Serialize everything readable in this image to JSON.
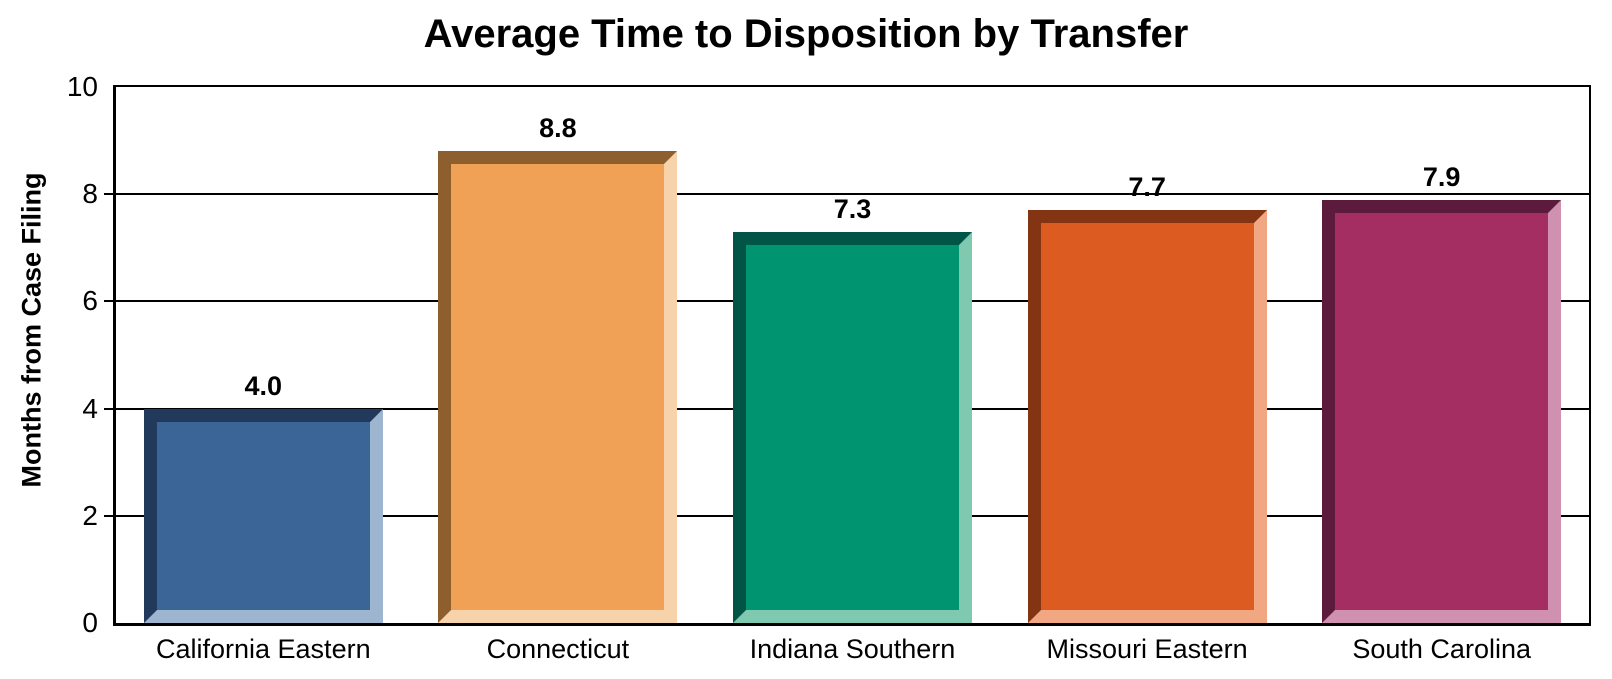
{
  "chart_data": {
    "type": "bar",
    "title": "Average Time to Disposition by Transfer",
    "xlabel": "",
    "ylabel": "Months from Case Filing",
    "ylim": [
      0,
      10
    ],
    "yticks": [
      0,
      2,
      4,
      6,
      8,
      10
    ],
    "grid": true,
    "legend": "none",
    "categories": [
      "California Eastern",
      "Connecticut",
      "Indiana Southern",
      "Missouri Eastern",
      "South Carolina"
    ],
    "values": [
      4.0,
      8.8,
      7.3,
      7.7,
      7.9
    ],
    "value_labels": [
      "4.0",
      "8.8",
      "7.3",
      "7.7",
      "7.9"
    ],
    "bar_styles": [
      {
        "fill": "#3B6597",
        "dark_edge": "#21395A",
        "light_edge": "#9EB5D0"
      },
      {
        "fill": "#F0A156",
        "dark_edge": "#8D5F2F",
        "light_edge": "#F6D3AA"
      },
      {
        "fill": "#009471",
        "dark_edge": "#005546",
        "light_edge": "#7FC9B0"
      },
      {
        "fill": "#DC5B20",
        "dark_edge": "#823413",
        "light_edge": "#F2A783"
      },
      {
        "fill": "#A42E62",
        "dark_edge": "#5C1B3C",
        "light_edge": "#D091B0"
      }
    ]
  },
  "colors": {
    "background": "#FFFFFF",
    "axis": "#000000",
    "text": "#000000"
  }
}
